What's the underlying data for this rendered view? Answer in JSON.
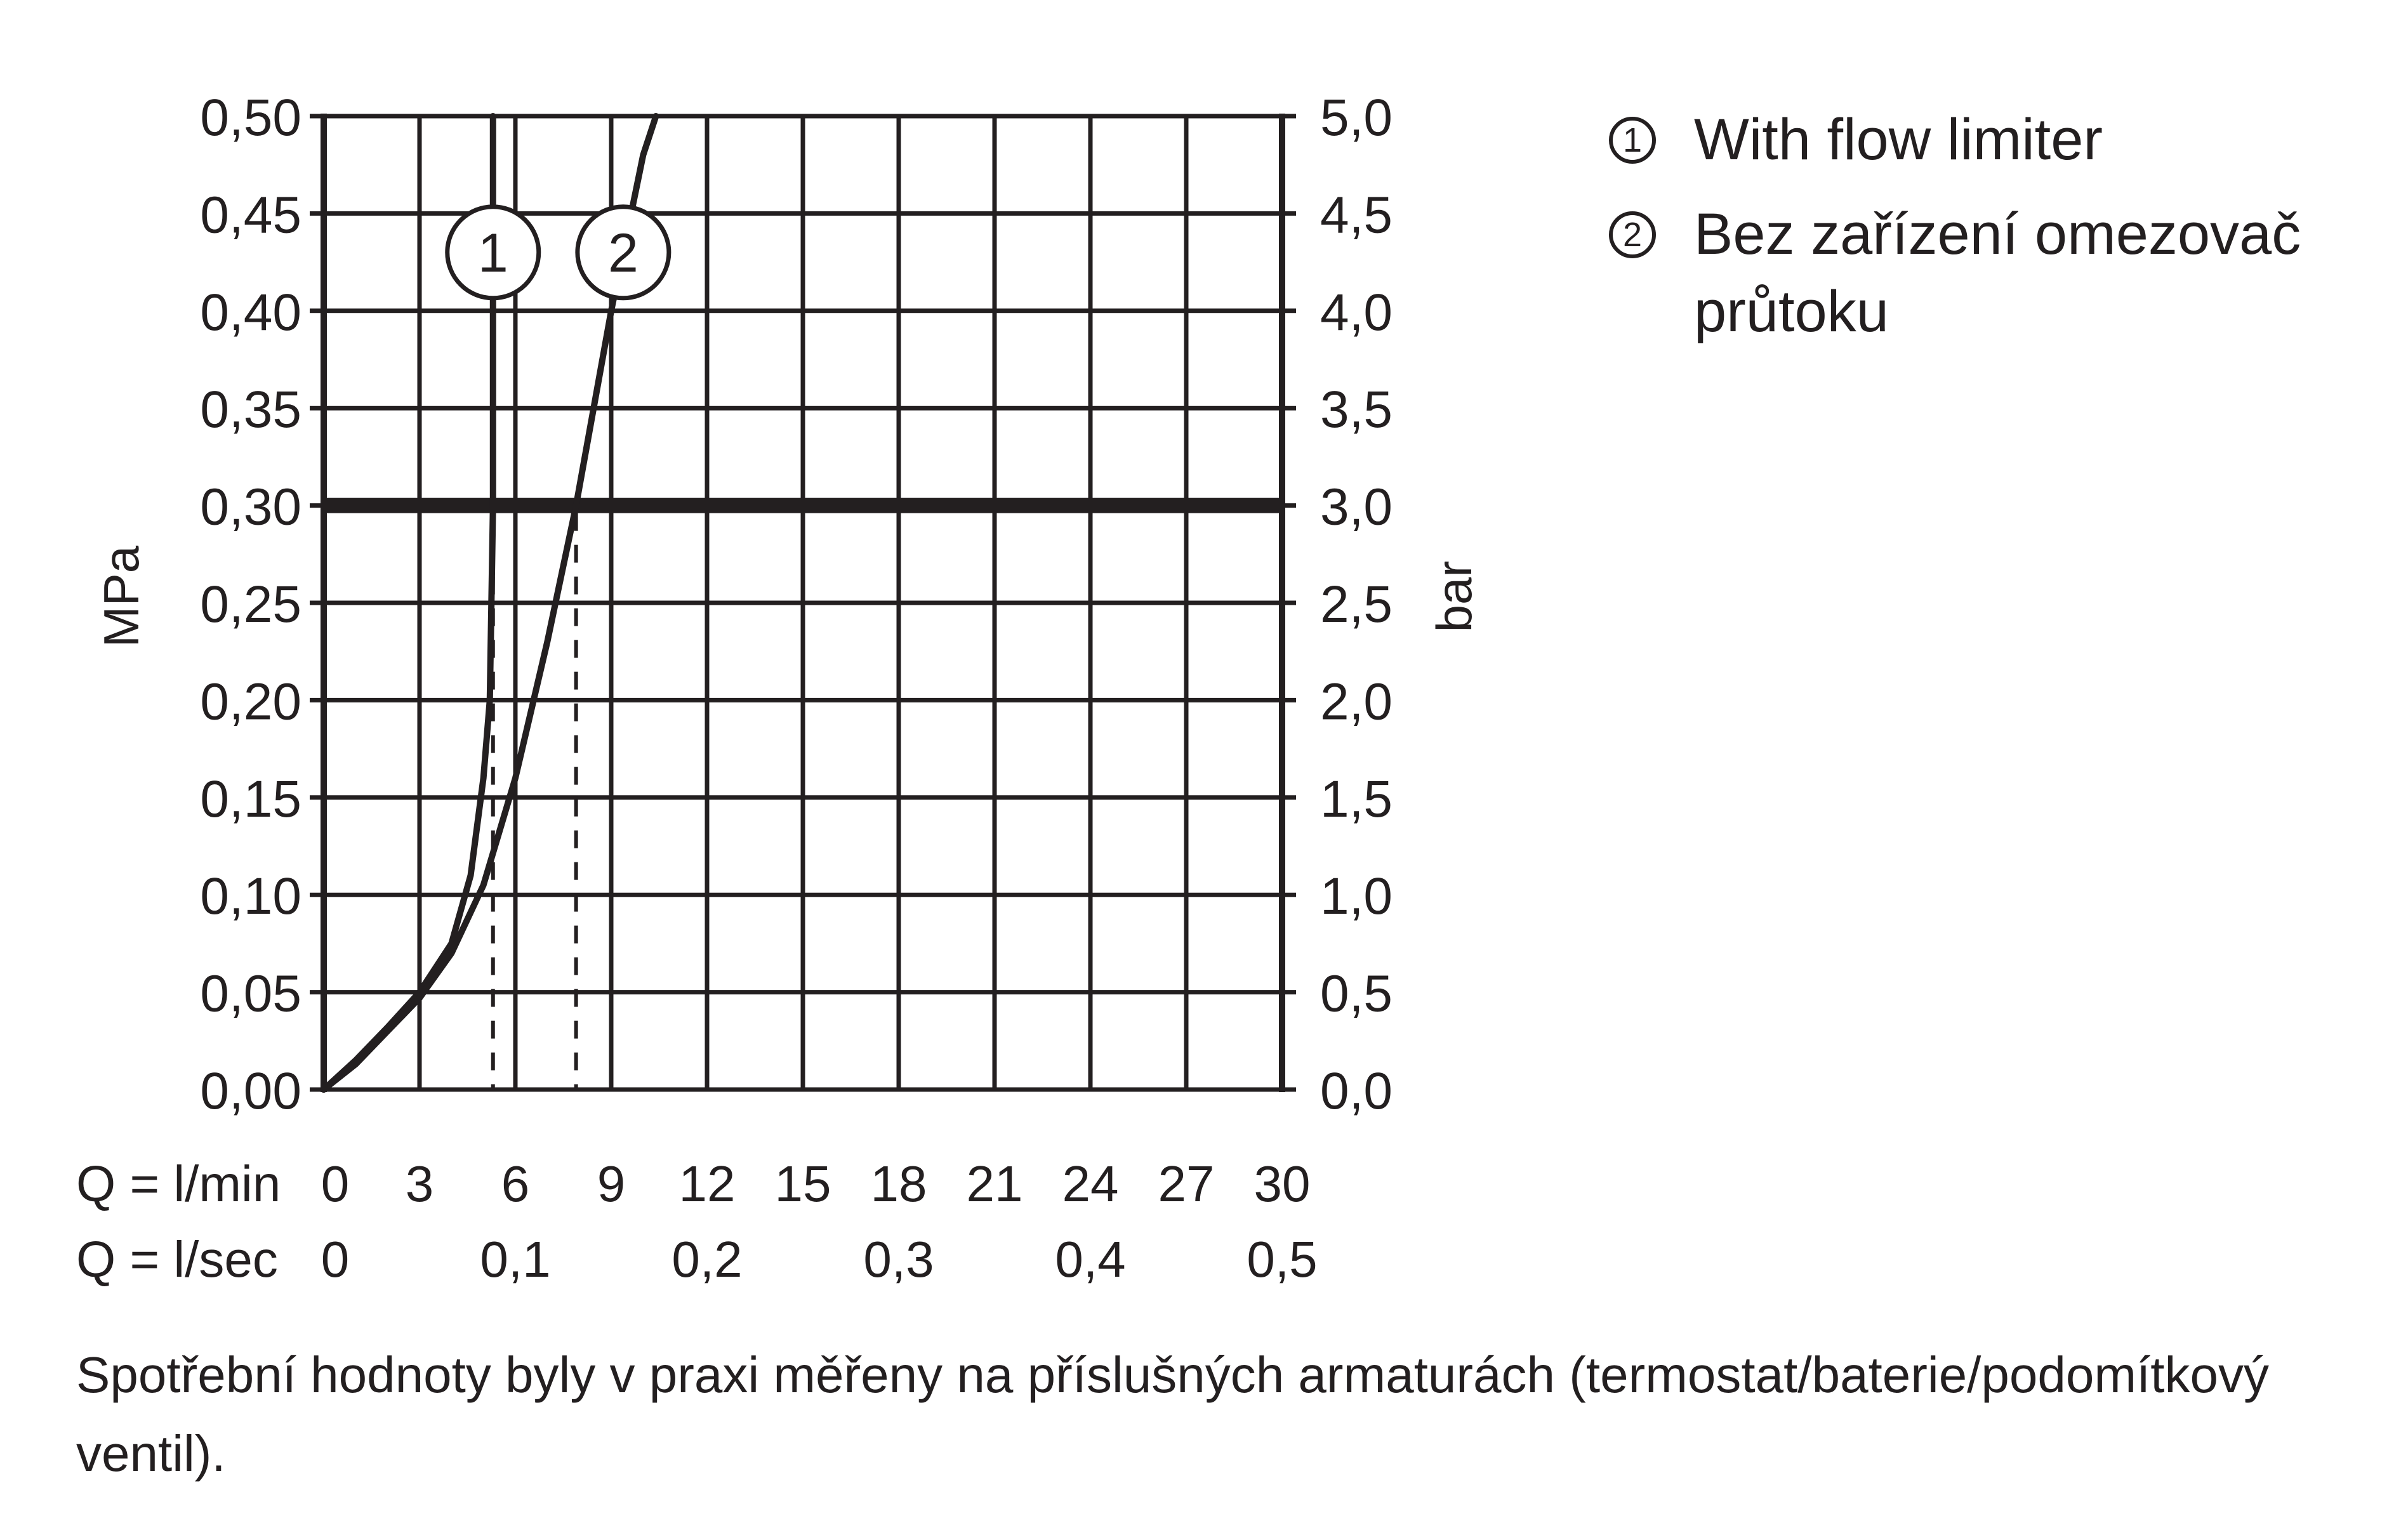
{
  "chart_data": {
    "type": "line",
    "xlabel_rows": [
      {
        "label": "Q = l/min",
        "ticks": [
          {
            "value": 0,
            "label": "0"
          },
          {
            "value": 3,
            "label": "3"
          },
          {
            "value": 6,
            "label": "6"
          },
          {
            "value": 9,
            "label": "9"
          },
          {
            "value": 12,
            "label": "12"
          },
          {
            "value": 15,
            "label": "15"
          },
          {
            "value": 18,
            "label": "18"
          },
          {
            "value": 21,
            "label": "21"
          },
          {
            "value": 24,
            "label": "24"
          },
          {
            "value": 27,
            "label": "27"
          },
          {
            "value": 30,
            "label": "30"
          }
        ]
      },
      {
        "label": "Q = l/sec",
        "ticks": [
          {
            "value": 0,
            "label": "0"
          },
          {
            "value": 6,
            "label": "0,1"
          },
          {
            "value": 12,
            "label": "0,2"
          },
          {
            "value": 18,
            "label": "0,3"
          },
          {
            "value": 24,
            "label": "0,4"
          },
          {
            "value": 30,
            "label": "0,5"
          }
        ]
      }
    ],
    "xlim": [
      0,
      30
    ],
    "ylabel": "MPa",
    "ylim": [
      0,
      0.5
    ],
    "yticks": [
      "0,00",
      "0,05",
      "0,10",
      "0,15",
      "0,20",
      "0,25",
      "0,30",
      "0,35",
      "0,40",
      "0,45",
      "0,50"
    ],
    "ylabel_right": "bar",
    "yticks_right": [
      "0,0",
      "0,5",
      "1,0",
      "1,5",
      "2,0",
      "2,5",
      "3,0",
      "3,5",
      "4,0",
      "4,5",
      "5,0"
    ],
    "grid": true,
    "reference_line": {
      "y": 0.3
    },
    "drop_lines": [
      {
        "x": 5.3,
        "y": 0.3
      },
      {
        "x": 7.9,
        "y": 0.3
      }
    ],
    "series": [
      {
        "marker": "1",
        "x": [
          0,
          1,
          2,
          3,
          4,
          4.6,
          5.0,
          5.2,
          5.3,
          5.3,
          5.3
        ],
        "y": [
          0,
          0.015,
          0.032,
          0.05,
          0.075,
          0.11,
          0.16,
          0.2,
          0.3,
          0.4,
          0.5
        ]
      },
      {
        "marker": "2",
        "x": [
          0,
          1,
          2,
          3,
          4,
          5,
          6,
          7,
          7.9,
          9.0,
          10.0,
          10.4
        ],
        "y": [
          0,
          0.013,
          0.03,
          0.047,
          0.07,
          0.105,
          0.16,
          0.23,
          0.3,
          0.4,
          0.48,
          0.5
        ]
      }
    ]
  },
  "legend": [
    {
      "marker": "1",
      "text": "With flow limiter"
    },
    {
      "marker": "2",
      "text": "Bez zařízení omezovač průtoku"
    }
  ],
  "note": "Spotřební hodnoty byly v praxi měřeny na příslušných armaturách (termostat/baterie/podomítkový ventil)."
}
